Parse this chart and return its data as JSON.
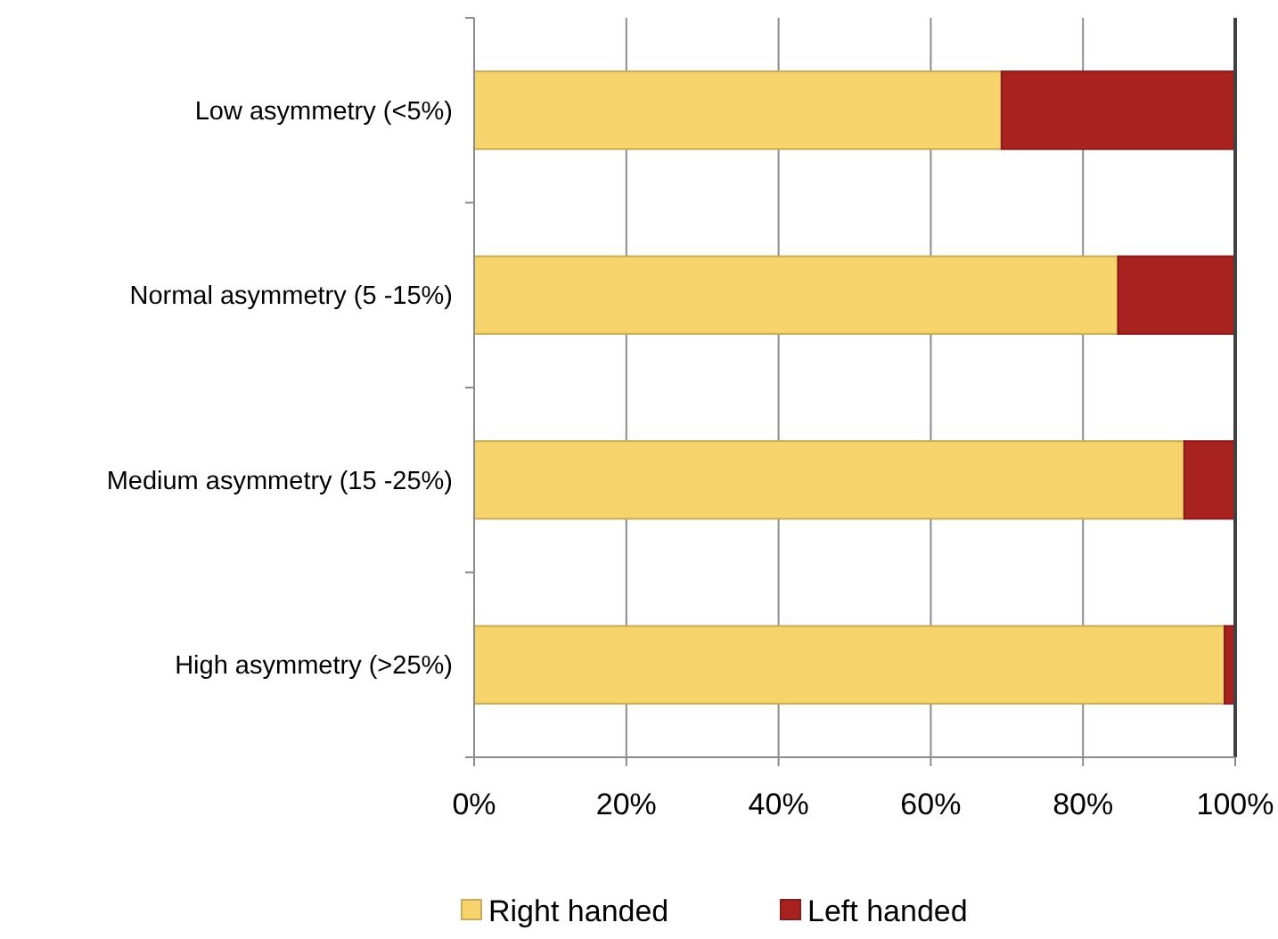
{
  "chart_data": {
    "type": "bar",
    "orientation": "horizontal",
    "stacked": true,
    "categories": [
      "Low asymmetry (<5%)",
      "Normal asymmetry (5 -15%)",
      "Medium asymmetry (15 -25%)",
      "High asymmetry (>25%)"
    ],
    "series": [
      {
        "name": "Right handed",
        "color": "#f7d46b",
        "values": [
          69.3,
          84.6,
          93.3,
          98.6
        ]
      },
      {
        "name": "Left handed",
        "color": "#a82220",
        "values": [
          30.7,
          15.4,
          6.7,
          1.4
        ]
      }
    ],
    "xlim": [
      0,
      100
    ],
    "xticks": [
      {
        "value": 0,
        "label": "0%"
      },
      {
        "value": 20,
        "label": "20%"
      },
      {
        "value": 40,
        "label": "40%"
      },
      {
        "value": 60,
        "label": "60%"
      },
      {
        "value": 80,
        "label": "80%"
      },
      {
        "value": 100,
        "label": "100%"
      }
    ],
    "grid": "x",
    "legend": "bottom"
  }
}
